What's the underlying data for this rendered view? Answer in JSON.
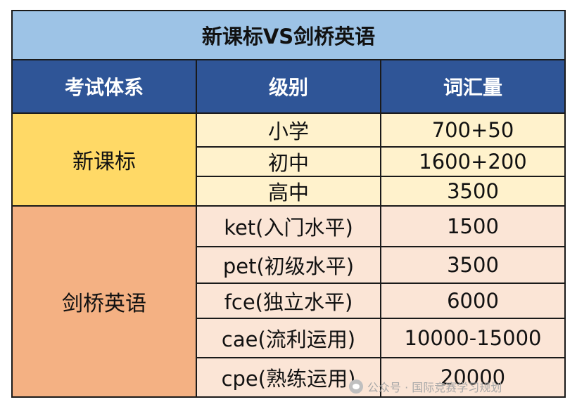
{
  "title": "新课标VS剑桥英语",
  "headers": [
    "考试体系",
    "级别",
    "词汇量"
  ],
  "groups": [
    {
      "name": "新课标",
      "rows": [
        {
          "level": "小学",
          "vocab": "700+50"
        },
        {
          "level": "初中",
          "vocab": "1600+200"
        },
        {
          "level": "高中",
          "vocab": "3500"
        }
      ]
    },
    {
      "name": "剑桥英语",
      "rows": [
        {
          "level": "ket(入门水平)",
          "vocab": "1500"
        },
        {
          "level": "pet(初级水平)",
          "vocab": "3500"
        },
        {
          "level": "fce(独立水平)",
          "vocab": "6000"
        },
        {
          "level": "cae(流利运用)",
          "vocab": "10000-15000"
        },
        {
          "level": "cpe(熟练运用)",
          "vocab": "20000"
        }
      ]
    }
  ],
  "watermark": "公众号 · 国际竞赛学习规划",
  "colors": {
    "title_bg": "#9dc3e6",
    "header_bg": "#2f5597",
    "new_group_bg": "#ffd966",
    "new_rows_bg": "#fff2cc",
    "cam_group_bg": "#f4b183",
    "cam_rows_bg": "#fbe5d6"
  }
}
